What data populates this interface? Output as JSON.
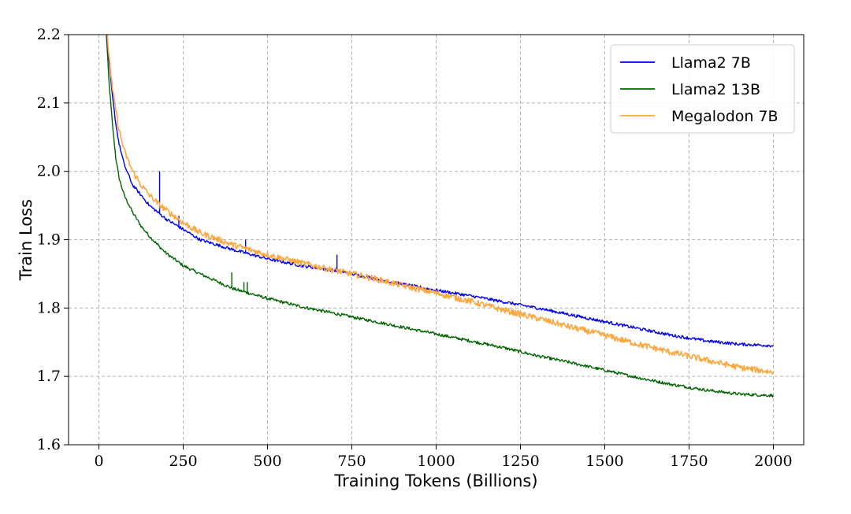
{
  "chart_data": {
    "type": "line",
    "title": "",
    "xlabel": "Training Tokens (Billions)",
    "ylabel": "Train Loss",
    "xlim": [
      -90,
      2090
    ],
    "ylim": [
      1.6,
      2.2
    ],
    "xticks": [
      0,
      250,
      500,
      750,
      1000,
      1250,
      1500,
      1750,
      2000
    ],
    "xtick_labels": [
      "0",
      "250",
      "500",
      "750",
      "1000",
      "1250",
      "1500",
      "1750",
      "2000"
    ],
    "yticks": [
      1.6,
      1.7,
      1.8,
      1.9,
      2.0,
      2.1,
      2.2
    ],
    "ytick_labels": [
      "1.6",
      "1.7",
      "1.8",
      "1.9",
      "2.0",
      "2.1",
      "2.2"
    ],
    "grid": true,
    "legend_position": "top-right",
    "series": [
      {
        "name": "Llama2 7B",
        "color": "#0000ee",
        "x": [
          20,
          30,
          40,
          50,
          60,
          75,
          100,
          125,
          150,
          175,
          200,
          250,
          300,
          400,
          500,
          600,
          700,
          800,
          900,
          1000,
          1100,
          1200,
          1300,
          1400,
          1500,
          1600,
          1700,
          1800,
          1900,
          2000
        ],
        "y": [
          2.22,
          2.16,
          2.11,
          2.07,
          2.04,
          2.01,
          1.98,
          1.965,
          1.95,
          1.94,
          1.93,
          1.915,
          1.9,
          1.885,
          1.872,
          1.862,
          1.855,
          1.845,
          1.835,
          1.826,
          1.818,
          1.809,
          1.8,
          1.79,
          1.78,
          1.77,
          1.76,
          1.752,
          1.747,
          1.745
        ]
      },
      {
        "name": "Llama2 13B",
        "color": "#006400",
        "x": [
          20,
          30,
          40,
          50,
          60,
          75,
          100,
          125,
          150,
          175,
          200,
          250,
          300,
          400,
          500,
          600,
          700,
          800,
          900,
          1000,
          1100,
          1200,
          1300,
          1400,
          1500,
          1600,
          1700,
          1800,
          1900,
          2000
        ],
        "y": [
          2.22,
          2.13,
          2.07,
          2.02,
          1.99,
          1.965,
          1.94,
          1.92,
          1.905,
          1.892,
          1.88,
          1.862,
          1.85,
          1.828,
          1.814,
          1.802,
          1.792,
          1.782,
          1.772,
          1.762,
          1.752,
          1.742,
          1.73,
          1.72,
          1.709,
          1.698,
          1.688,
          1.68,
          1.674,
          1.672
        ]
      },
      {
        "name": "Megalodon 7B",
        "color": "#ffa53a",
        "x": [
          20,
          30,
          40,
          50,
          60,
          75,
          100,
          125,
          150,
          175,
          200,
          250,
          300,
          400,
          500,
          600,
          700,
          800,
          900,
          1000,
          1100,
          1200,
          1300,
          1400,
          1500,
          1600,
          1700,
          1800,
          1900,
          2000
        ],
        "y": [
          2.22,
          2.17,
          2.12,
          2.09,
          2.06,
          2.03,
          2.0,
          1.98,
          1.965,
          1.953,
          1.943,
          1.925,
          1.91,
          1.892,
          1.878,
          1.866,
          1.855,
          1.845,
          1.833,
          1.822,
          1.81,
          1.797,
          1.785,
          1.772,
          1.76,
          1.747,
          1.735,
          1.724,
          1.713,
          1.706
        ]
      }
    ],
    "spikes": [
      {
        "series": "Llama2 7B",
        "x": 180,
        "y": 2.0
      },
      {
        "series": "Llama2 7B",
        "x": 237,
        "y": 1.935
      },
      {
        "series": "Llama2 7B",
        "x": 435,
        "y": 1.9
      },
      {
        "series": "Llama2 7B",
        "x": 706,
        "y": 1.878
      },
      {
        "series": "Llama2 13B",
        "x": 394,
        "y": 1.852
      },
      {
        "series": "Llama2 13B",
        "x": 430,
        "y": 1.838
      },
      {
        "series": "Llama2 13B",
        "x": 440,
        "y": 1.838
      },
      {
        "series": "Llama2 13B",
        "x": 175,
        "y": 1.895
      }
    ]
  }
}
